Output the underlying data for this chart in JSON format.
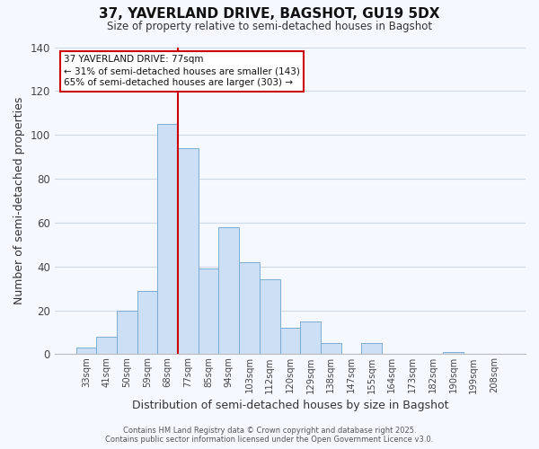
{
  "title": "37, YAVERLAND DRIVE, BAGSHOT, GU19 5DX",
  "subtitle": "Size of property relative to semi-detached houses in Bagshot",
  "xlabel": "Distribution of semi-detached houses by size in Bagshot",
  "ylabel": "Number of semi-detached properties",
  "bar_color": "#ccdff5",
  "bar_edge_color": "#7aadd4",
  "grid_color": "#d0d8e8",
  "background_color": "#f5f8ff",
  "bin_labels": [
    "33sqm",
    "41sqm",
    "50sqm",
    "59sqm",
    "68sqm",
    "77sqm",
    "85sqm",
    "94sqm",
    "103sqm",
    "112sqm",
    "120sqm",
    "129sqm",
    "138sqm",
    "147sqm",
    "155sqm",
    "164sqm",
    "173sqm",
    "182sqm",
    "190sqm",
    "199sqm",
    "208sqm"
  ],
  "bar_values": [
    3,
    8,
    20,
    29,
    105,
    94,
    39,
    58,
    42,
    34,
    12,
    15,
    5,
    0,
    5,
    0,
    0,
    0,
    1,
    0,
    0
  ],
  "property_label": "37 YAVERLAND DRIVE: 77sqm",
  "annotation_smaller": "← 31% of semi-detached houses are smaller (143)",
  "annotation_larger": "65% of semi-detached houses are larger (303) →",
  "vline_color": "#cc0000",
  "vline_x": 4.5,
  "ylim": [
    0,
    140
  ],
  "yticks": [
    0,
    20,
    40,
    60,
    80,
    100,
    120,
    140
  ],
  "annotation_box_facecolor": "#ffffff",
  "annotation_box_edgecolor": "#cc0000",
  "footer_line1": "Contains HM Land Registry data © Crown copyright and database right 2025.",
  "footer_line2": "Contains public sector information licensed under the Open Government Licence v3.0."
}
